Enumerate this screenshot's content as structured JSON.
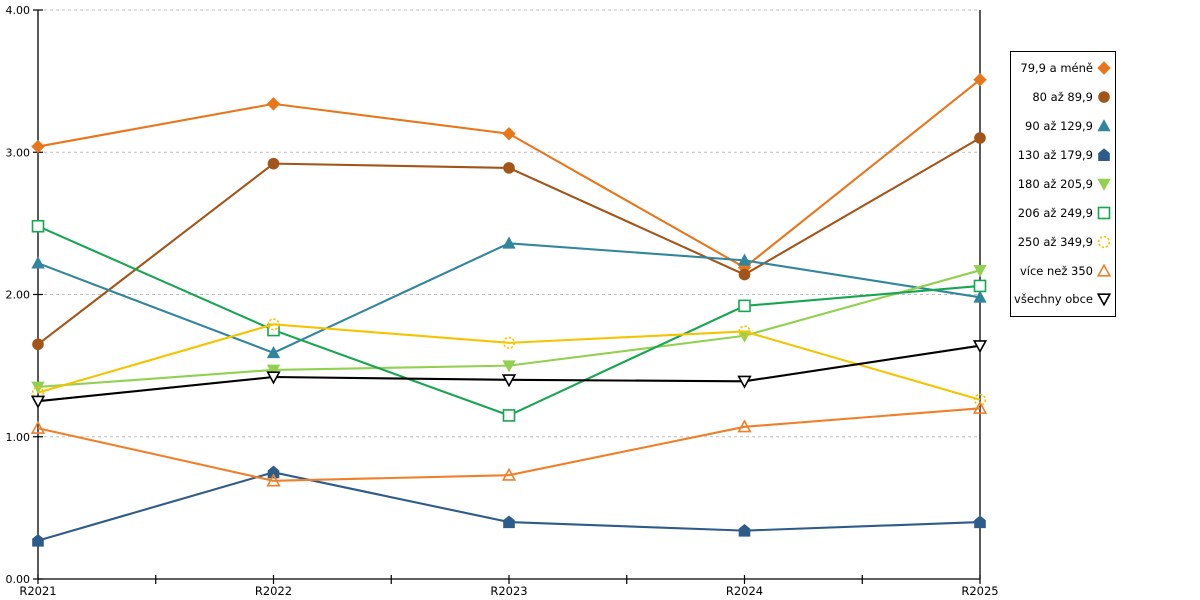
{
  "chart_data": {
    "type": "line",
    "title": "",
    "x_categories": [
      "R2021",
      "R2022",
      "R2023",
      "R2024",
      "R2025"
    ],
    "y_axis": {
      "min": 0,
      "max": 4,
      "tick_step": 1,
      "tick_labels": [
        "0.00",
        "1.00",
        "2.00",
        "3.00",
        "4.00"
      ],
      "grid": "dashed-dotted-gray"
    },
    "x_axis": {
      "minor_ticks_between_categories": true
    },
    "legend_position": "right",
    "series": [
      {
        "name": "79,9 a méně",
        "marker": "diamond",
        "style": "filled",
        "color": "#E8761B",
        "values": [
          3.04,
          3.34,
          3.13,
          2.19,
          3.51
        ]
      },
      {
        "name": "80 až 89,9",
        "marker": "circle",
        "style": "filled",
        "color": "#A35519",
        "values": [
          1.65,
          2.92,
          2.89,
          2.14,
          3.1
        ]
      },
      {
        "name": "90 až 129,9",
        "marker": "triangle-up",
        "style": "filled",
        "color": "#31859C",
        "values": [
          2.22,
          1.59,
          2.36,
          2.24,
          1.98
        ]
      },
      {
        "name": "130 až 179,9",
        "marker": "pentagon",
        "style": "filled",
        "color": "#2E5C8A",
        "values": [
          0.27,
          0.75,
          0.4,
          0.34,
          0.4
        ]
      },
      {
        "name": "180 až 205,9",
        "marker": "triangle-down",
        "style": "filled",
        "color": "#92D050",
        "values": [
          1.35,
          1.47,
          1.5,
          1.71,
          2.17
        ]
      },
      {
        "name": "206 až 249,9",
        "marker": "square",
        "style": "open",
        "open_fill": "white",
        "color": "#17A650",
        "values": [
          2.48,
          1.75,
          1.15,
          1.92,
          2.06
        ]
      },
      {
        "name": "250 až 349,9",
        "marker": "circle",
        "style": "open",
        "open_fill": "none",
        "dashed_outline": true,
        "color": "#F5C400",
        "values": [
          1.31,
          1.79,
          1.66,
          1.74,
          1.26
        ]
      },
      {
        "name": "více než 350",
        "marker": "triangle-up",
        "style": "open",
        "open_fill": "none",
        "color": "#F07F29",
        "values": [
          1.06,
          0.69,
          0.73,
          1.07,
          1.2
        ]
      },
      {
        "name": "všechny obce",
        "marker": "triangle-down",
        "style": "open",
        "open_fill": "white",
        "color": "#000000",
        "values": [
          1.25,
          1.42,
          1.4,
          1.39,
          1.64
        ]
      }
    ]
  }
}
